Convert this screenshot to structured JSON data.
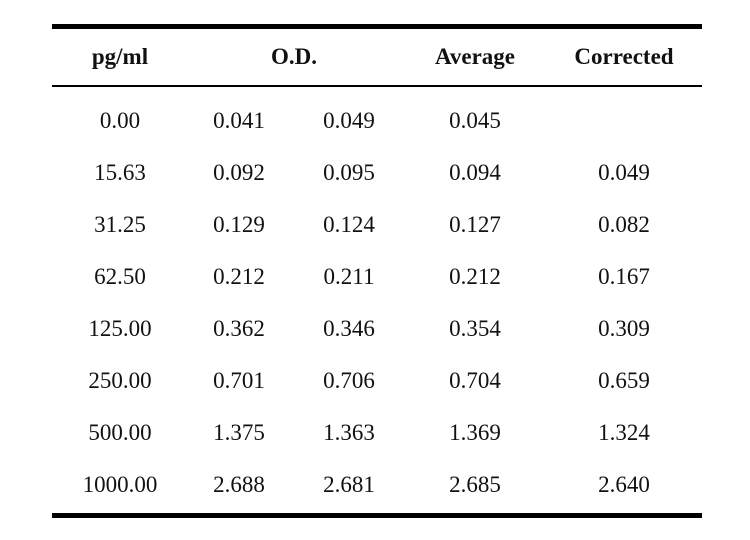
{
  "table": {
    "headers": {
      "concentration": "pg/ml",
      "od": "O.D.",
      "average": "Average",
      "corrected": "Corrected"
    },
    "rows": [
      {
        "conc": "0.00",
        "od1": "0.041",
        "od2": "0.049",
        "avg": "0.045",
        "corr": ""
      },
      {
        "conc": "15.63",
        "od1": "0.092",
        "od2": "0.095",
        "avg": "0.094",
        "corr": "0.049"
      },
      {
        "conc": "31.25",
        "od1": "0.129",
        "od2": "0.124",
        "avg": "0.127",
        "corr": "0.082"
      },
      {
        "conc": "62.50",
        "od1": "0.212",
        "od2": "0.211",
        "avg": "0.212",
        "corr": "0.167"
      },
      {
        "conc": "125.00",
        "od1": "0.362",
        "od2": "0.346",
        "avg": "0.354",
        "corr": "0.309"
      },
      {
        "conc": "250.00",
        "od1": "0.701",
        "od2": "0.706",
        "avg": "0.704",
        "corr": "0.659"
      },
      {
        "conc": "500.00",
        "od1": "1.375",
        "od2": "1.363",
        "avg": "1.369",
        "corr": "1.324"
      },
      {
        "conc": "1000.00",
        "od1": "2.688",
        "od2": "2.681",
        "avg": "2.685",
        "corr": "2.640"
      }
    ]
  }
}
